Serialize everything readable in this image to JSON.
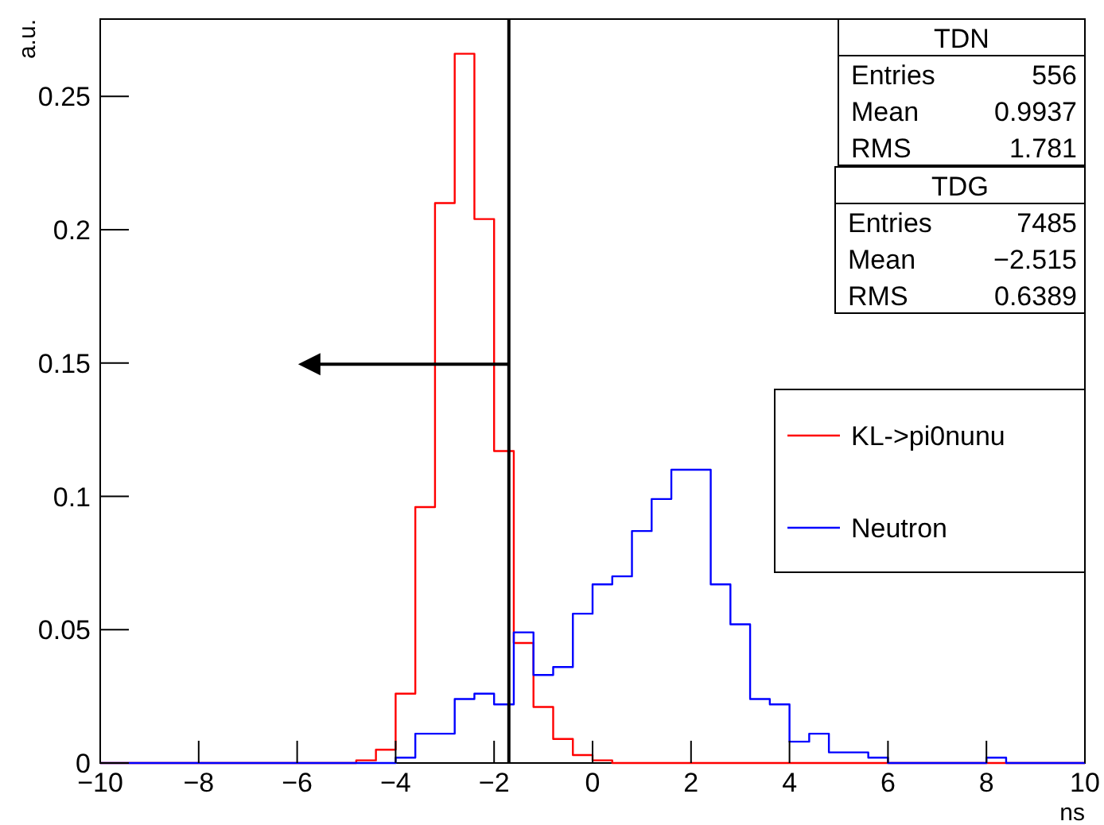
{
  "chart_data": {
    "type": "histogram",
    "xlabel": "ns",
    "ylabel": "a.u.",
    "bins": [
      -10,
      -9.6,
      -9.2,
      -8.8,
      -8.4,
      -8,
      -7.6,
      -7.2,
      -6.8,
      -6.4,
      -6,
      -5.6,
      -5.2,
      -4.8,
      -4.4,
      -4,
      -3.6,
      -3.2,
      -2.8,
      -2.4,
      -2,
      -1.6,
      -1.2,
      -0.8,
      -0.4,
      0,
      0.4,
      0.8,
      1.2,
      1.6,
      2,
      2.4,
      2.8,
      3.2,
      3.6,
      4,
      4.4,
      4.8,
      5.2,
      5.6,
      6,
      6.4,
      6.8,
      7.2,
      7.6,
      8,
      8.4,
      8.8,
      9.2,
      9.6,
      10
    ],
    "series": [
      {
        "name": "KL->pi0nunu",
        "color": "#ff0000",
        "values": [
          0,
          0,
          0,
          0,
          0,
          0,
          0,
          0,
          0,
          0,
          0,
          0,
          0,
          0.001,
          0.005,
          0.026,
          0.096,
          0.21,
          0.266,
          0.204,
          0.117,
          0.045,
          0.021,
          0.009,
          0.003,
          0.001,
          0,
          0,
          0,
          0,
          0,
          0,
          0,
          0,
          0,
          0,
          0,
          0,
          0,
          0,
          0,
          0,
          0,
          0,
          0,
          0,
          0,
          0,
          0,
          0
        ]
      },
      {
        "name": "Neutron",
        "color": "#0000ff",
        "values": [
          0,
          0,
          0,
          0,
          0,
          0,
          0,
          0,
          0,
          0,
          0,
          0,
          0,
          0,
          0,
          0.002,
          0.011,
          0.011,
          0.024,
          0.026,
          0.022,
          0.049,
          0.033,
          0.036,
          0.056,
          0.067,
          0.07,
          0.087,
          0.099,
          0.11,
          0.11,
          0.067,
          0.052,
          0.024,
          0.022,
          0.008,
          0.011,
          0.004,
          0.004,
          0.002,
          0,
          0,
          0,
          0,
          0,
          0.002,
          0,
          0,
          0,
          0
        ]
      }
    ],
    "xlim": [
      -10,
      10
    ],
    "xticks": [
      -10,
      -8,
      -6,
      -4,
      -2,
      0,
      2,
      4,
      6,
      8,
      10
    ],
    "ylim": [
      0,
      0.279
    ],
    "yticks": [
      0,
      0.05,
      0.1,
      0.15,
      0.2,
      0.25
    ],
    "ref_lines": [
      {
        "axis": "x",
        "value": -1.7,
        "color": "#000000"
      }
    ],
    "annotations": [
      "TDN",
      "Entries",
      "556",
      "Mean",
      "0.9937",
      "RMS",
      "1.781",
      "TDG",
      "Entries",
      "7485",
      "Mean",
      "−2.515",
      "RMS",
      "0.6389"
    ],
    "legend": "right"
  }
}
